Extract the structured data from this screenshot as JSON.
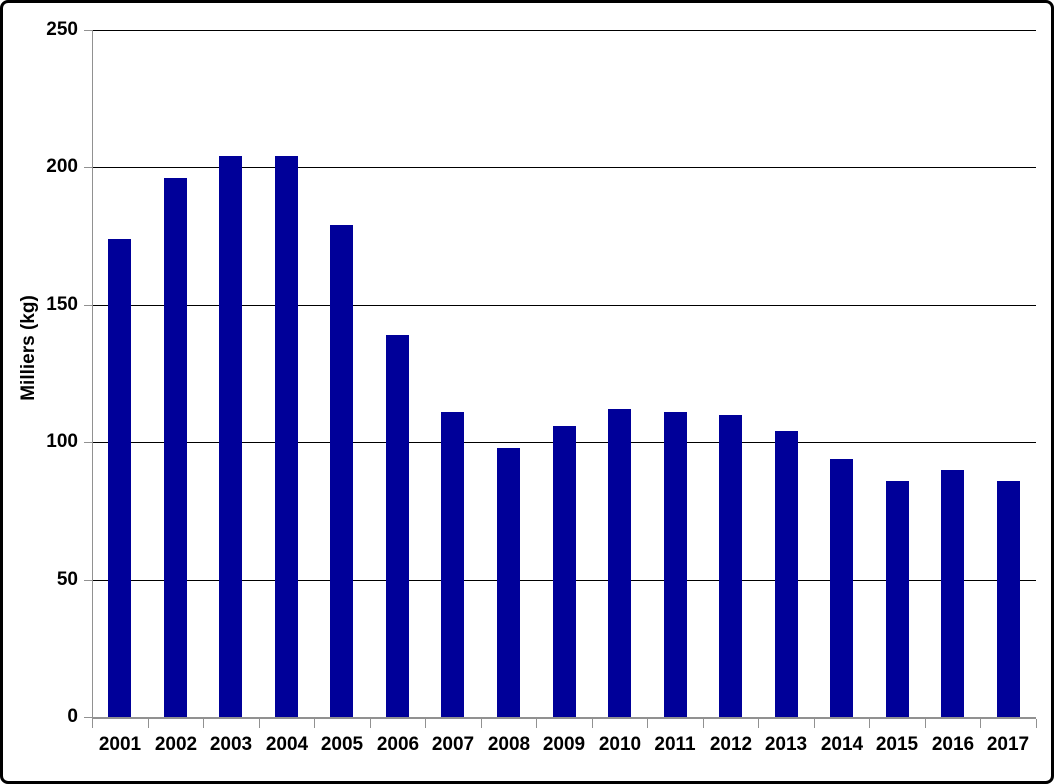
{
  "chart_data": {
    "type": "bar",
    "title": "",
    "xlabel": "",
    "ylabel": "Milliers (kg)",
    "categories": [
      "2001",
      "2002",
      "2003",
      "2004",
      "2005",
      "2006",
      "2007",
      "2008",
      "2009",
      "2010",
      "2011",
      "2012",
      "2013",
      "2014",
      "2015",
      "2016",
      "2017"
    ],
    "values": [
      174,
      196,
      204,
      204,
      179,
      139,
      111,
      98,
      106,
      112,
      111,
      110,
      104,
      94,
      86,
      90,
      86
    ],
    "ylim": [
      0,
      250
    ],
    "yticks": [
      0,
      50,
      100,
      150,
      200,
      250
    ],
    "grid": "horizontal",
    "legend": "none",
    "colors": {
      "bar": "#000099",
      "gridline": "#000000",
      "axis": "#919191",
      "text": "#000000",
      "background": "#ffffff",
      "frame_border": "#000000"
    }
  }
}
